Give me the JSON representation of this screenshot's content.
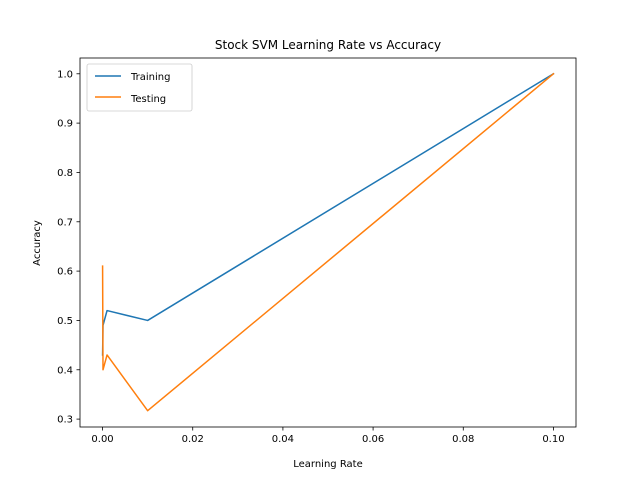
{
  "chart_data": {
    "type": "line",
    "title": "Stock SVM Learning Rate vs Accuracy",
    "xlabel": "Learning Rate",
    "ylabel": "Accuracy",
    "xlim": [
      -0.005,
      0.105
    ],
    "ylim": [
      0.284,
      1.032
    ],
    "xticks": [
      0.0,
      0.02,
      0.04,
      0.06,
      0.08,
      0.1
    ],
    "xtick_labels": [
      "0.00",
      "0.02",
      "0.04",
      "0.06",
      "0.08",
      "0.10"
    ],
    "yticks": [
      0.3,
      0.4,
      0.5,
      0.6,
      0.7,
      0.8,
      0.9,
      1.0
    ],
    "ytick_labels": [
      "0.3",
      "0.4",
      "0.5",
      "0.6",
      "0.7",
      "0.8",
      "0.9",
      "1.0"
    ],
    "grid": false,
    "legend_position": "top-left",
    "series": [
      {
        "name": "Training",
        "color": "#1f77b4",
        "x": [
          1e-05,
          0.0001,
          0.001,
          0.01,
          0.1
        ],
        "y": [
          0.43,
          0.49,
          0.52,
          0.5,
          1.0
        ]
      },
      {
        "name": "Testing",
        "color": "#ff7f0e",
        "x": [
          1e-05,
          0.0001,
          0.001,
          0.01,
          0.1
        ],
        "y": [
          0.61,
          0.4,
          0.43,
          0.317,
          1.0
        ]
      }
    ]
  }
}
